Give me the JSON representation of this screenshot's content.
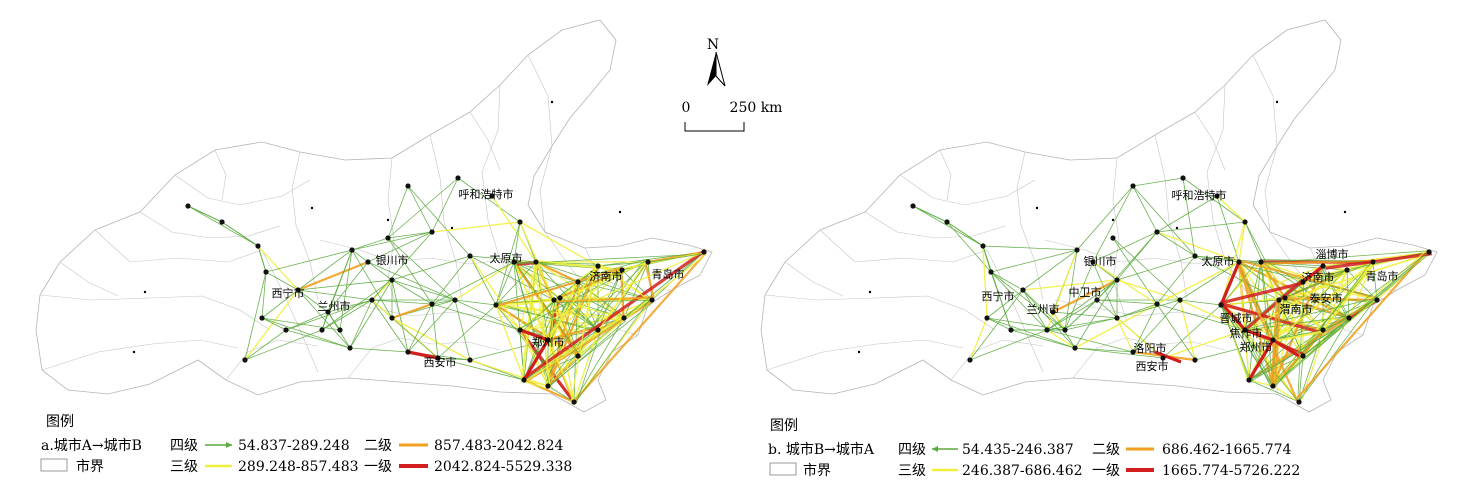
{
  "north_arrow": {
    "label": "N"
  },
  "scale_bar": {
    "zero": "0",
    "end": "250 km"
  },
  "maps": [
    {
      "id": "a",
      "cities": [
        "西宁市",
        "兰州市",
        "银川市",
        "呼和浩特市",
        "太原市",
        "济南市",
        "青岛市",
        "郑州市",
        "西安市"
      ],
      "legend": {
        "title": "图例",
        "subtitle": "a.城市A→城市B",
        "boundary_label": "市界",
        "classes": [
          {
            "level": "四级",
            "range": "54.837-289.248",
            "color": "#5aaa3c"
          },
          {
            "level": "三级",
            "range": "289.248-857.483",
            "color": "#f0f03c"
          },
          {
            "level": "二级",
            "range": "857.483-2042.824",
            "color": "#f0a01e"
          },
          {
            "level": "一级",
            "range": "2042.824-5529.338",
            "color": "#d21e1e"
          }
        ]
      }
    },
    {
      "id": "b",
      "cities": [
        "西宁市",
        "兰州市",
        "中卫市",
        "银川市",
        "呼和浩特市",
        "太原市",
        "淄博市",
        "济南市",
        "泰安市",
        "青岛市",
        "晋城市",
        "焦作市",
        "郑州市",
        "洛阳市",
        "西安市",
        "渭南市"
      ],
      "legend": {
        "title": "图例",
        "subtitle": "b. 城市B→城市A",
        "boundary_label": "市界",
        "classes": [
          {
            "level": "四级",
            "range": "54.435-246.387",
            "color": "#5aaa3c"
          },
          {
            "level": "三级",
            "range": "246.387-686.462",
            "color": "#f0f03c"
          },
          {
            "level": "二级",
            "range": "686.462-1665.774",
            "color": "#f0a01e"
          },
          {
            "level": "一级",
            "range": "1665.774-5726.222",
            "color": "#d21e1e"
          }
        ]
      }
    }
  ]
}
